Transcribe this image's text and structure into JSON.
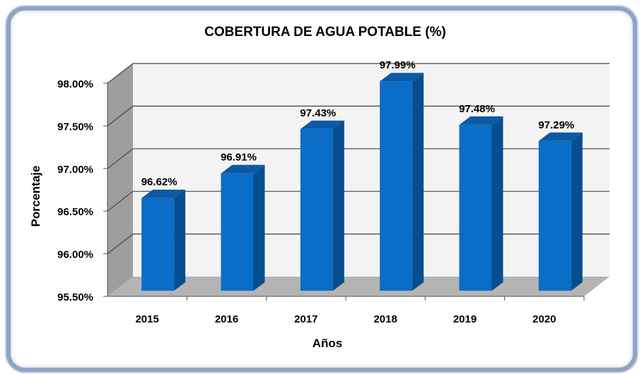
{
  "chart_data": {
    "type": "bar",
    "title": "COBERTURA DE AGUA POTABLE (%)",
    "xlabel": "Años",
    "ylabel": "Porcentaje",
    "categories": [
      "2015",
      "2016",
      "2017",
      "2018",
      "2019",
      "2020"
    ],
    "values": [
      96.62,
      96.91,
      97.43,
      97.99,
      97.48,
      97.29
    ],
    "data_labels": [
      "96.62%",
      "96.91%",
      "97.43%",
      "97.99%",
      "97.48%",
      "97.29%"
    ],
    "ylim": [
      95.5,
      98.0
    ],
    "yticks": [
      95.5,
      96.0,
      96.5,
      97.0,
      97.5,
      98.0
    ],
    "ytick_labels": [
      "95.50%",
      "96.00%",
      "96.50%",
      "97.00%",
      "97.50%",
      "98.00%"
    ],
    "grid": true,
    "style": "3d-column",
    "colors": {
      "bar_front": "#0a6dc8",
      "bar_side": "#064e8f",
      "bar_top": "#0b5aa3",
      "wall": "#f3f3f3",
      "side_wall": "#9e9e9e",
      "floor": "#b4b4b4",
      "grid": "#444444"
    }
  }
}
